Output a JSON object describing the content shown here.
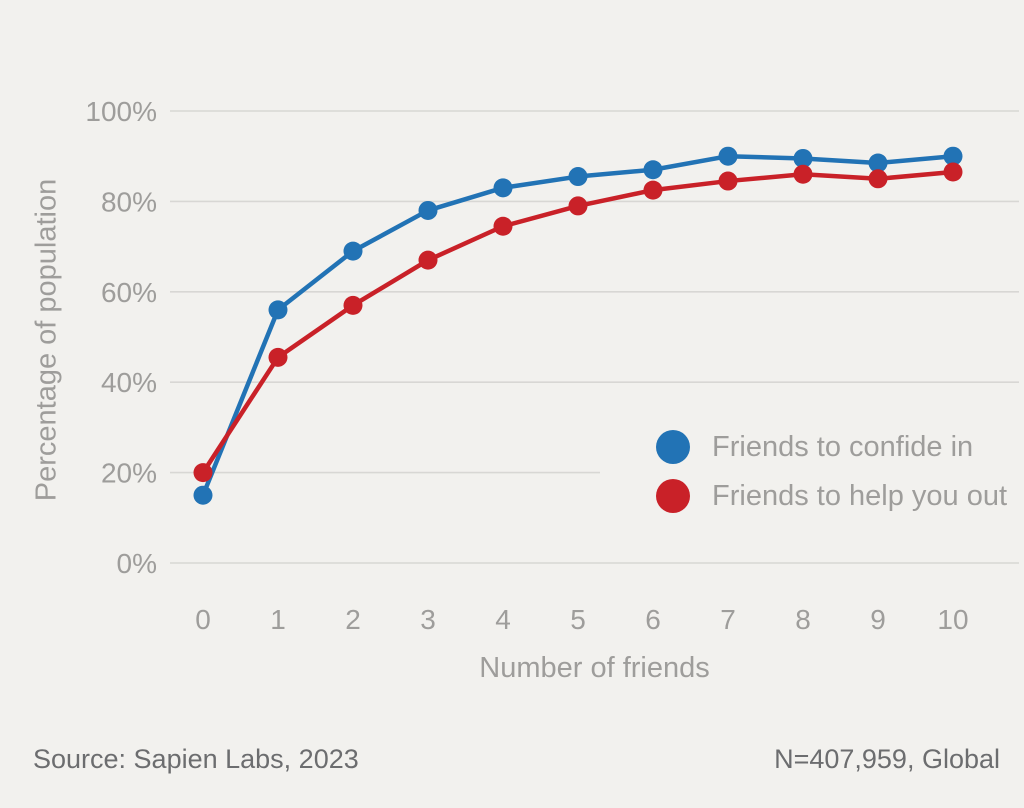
{
  "canvas": {
    "background": "#f2f1ee"
  },
  "chart_data": {
    "type": "line",
    "title": "",
    "xlabel": "Number of friends",
    "ylabel": "Percentage of population",
    "x": [
      0,
      1,
      2,
      3,
      4,
      5,
      6,
      7,
      8,
      9,
      10
    ],
    "series": [
      {
        "name": "Friends to confide in",
        "color": "#2273b5",
        "values": [
          15,
          56,
          69,
          78,
          83,
          85.5,
          87,
          90,
          89.5,
          88.5,
          90
        ]
      },
      {
        "name": "Friends to help you out",
        "color": "#c92128",
        "values": [
          20,
          45.5,
          57,
          67,
          74.5,
          79,
          82.5,
          84.5,
          86,
          85,
          86.5
        ]
      }
    ],
    "ylim": [
      0,
      100
    ],
    "yticks": [
      0,
      20,
      40,
      60,
      80,
      100
    ],
    "ytick_labels": [
      "0%",
      "20%",
      "40%",
      "60%",
      "80%",
      "100%"
    ],
    "grid": "horizontal",
    "grid_color": "#d8d7d4",
    "tick_label_color": "#9e9d9b",
    "legend_position": "inside-right-middle",
    "marker": "circle",
    "marker_radius": 9.5,
    "line_width": 4.5
  },
  "footer": {
    "source": "Source: Sapien Labs, 2023",
    "sample": "N=407,959, Global"
  }
}
